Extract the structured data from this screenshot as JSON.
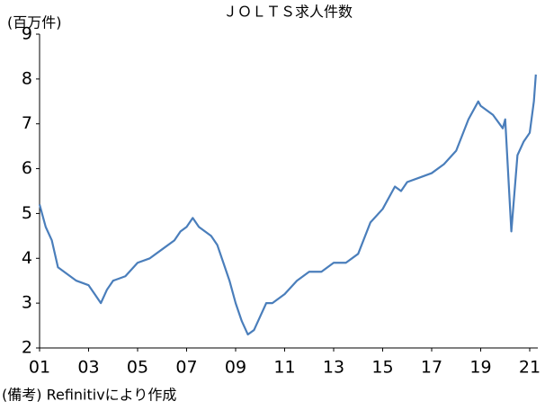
{
  "chart_data": {
    "type": "line",
    "title": "ＪＯＬＴＳ求人件数",
    "y_label": "(百万件)",
    "note": "(備考) Refinitivにより作成",
    "series": [
      {
        "name": "JOLTS求人件数",
        "color": "#4a7ebb",
        "x": [
          2001.0,
          2001.25,
          2001.5,
          2001.75,
          2002.0,
          2002.5,
          2003.0,
          2003.25,
          2003.5,
          2003.75,
          2004.0,
          2004.5,
          2005.0,
          2005.5,
          2006.0,
          2006.5,
          2006.75,
          2007.0,
          2007.25,
          2007.5,
          2008.0,
          2008.25,
          2008.5,
          2008.75,
          2009.0,
          2009.25,
          2009.5,
          2009.75,
          2010.0,
          2010.25,
          2010.5,
          2010.75,
          2011.0,
          2011.5,
          2012.0,
          2012.5,
          2013.0,
          2013.5,
          2014.0,
          2014.5,
          2015.0,
          2015.5,
          2015.75,
          2016.0,
          2016.5,
          2017.0,
          2017.5,
          2018.0,
          2018.5,
          2018.9,
          2019.0,
          2019.5,
          2019.9,
          2020.0,
          2020.25,
          2020.5,
          2020.75,
          2021.0,
          2021.17,
          2021.25
        ],
        "values": [
          5.2,
          4.7,
          4.4,
          3.8,
          3.7,
          3.5,
          3.4,
          3.2,
          3.0,
          3.3,
          3.5,
          3.6,
          3.9,
          4.0,
          4.2,
          4.4,
          4.6,
          4.7,
          4.9,
          4.7,
          4.5,
          4.3,
          3.9,
          3.5,
          3.0,
          2.6,
          2.3,
          2.4,
          2.7,
          3.0,
          3.0,
          3.1,
          3.2,
          3.5,
          3.7,
          3.7,
          3.9,
          3.9,
          4.1,
          4.8,
          5.1,
          5.6,
          5.5,
          5.7,
          5.8,
          5.9,
          6.1,
          6.4,
          7.1,
          7.5,
          7.4,
          7.2,
          6.9,
          7.1,
          4.6,
          6.3,
          6.6,
          6.8,
          7.5,
          8.1
        ]
      }
    ],
    "xlim": [
      2001,
      2021.33
    ],
    "xticks": [
      {
        "value": 2001,
        "label": "01"
      },
      {
        "value": 2003,
        "label": "03"
      },
      {
        "value": 2005,
        "label": "05"
      },
      {
        "value": 2007,
        "label": "07"
      },
      {
        "value": 2009,
        "label": "09"
      },
      {
        "value": 2011,
        "label": "11"
      },
      {
        "value": 2013,
        "label": "13"
      },
      {
        "value": 2015,
        "label": "15"
      },
      {
        "value": 2017,
        "label": "17"
      },
      {
        "value": 2019,
        "label": "19"
      },
      {
        "value": 2021,
        "label": "21"
      }
    ],
    "ylim": [
      2,
      9
    ],
    "yticks": [
      2,
      3,
      4,
      5,
      6,
      7,
      8,
      9
    ]
  }
}
